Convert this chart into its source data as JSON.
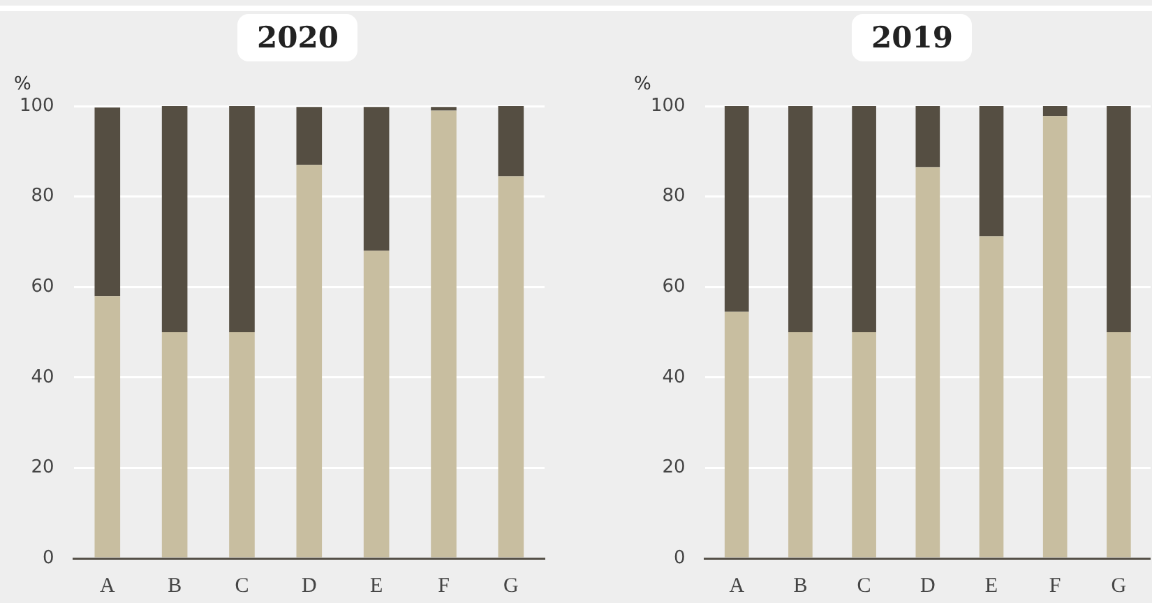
{
  "chart_data": [
    {
      "type": "bar",
      "title": "2020",
      "ylabel": "%",
      "categories": [
        "A",
        "B",
        "C",
        "D",
        "E",
        "F",
        "G"
      ],
      "stacked": true,
      "ylim": [
        0,
        100
      ],
      "yticks": [
        0,
        20,
        40,
        60,
        80,
        100
      ],
      "grid": "y",
      "legend": false,
      "series": [
        {
          "color": "#c8bea0",
          "values": [
            58,
            50,
            50,
            87,
            68,
            99,
            84.5
          ]
        },
        {
          "color": "#554e42",
          "values": [
            41.7,
            50,
            50,
            12.8,
            31.8,
            0.8,
            15.5
          ]
        }
      ]
    },
    {
      "type": "bar",
      "title": "2019",
      "ylabel": "%",
      "categories": [
        "A",
        "B",
        "C",
        "D",
        "E",
        "F",
        "G"
      ],
      "stacked": true,
      "ylim": [
        0,
        100
      ],
      "yticks": [
        0,
        20,
        40,
        60,
        80,
        100
      ],
      "grid": "y",
      "legend": false,
      "series": [
        {
          "color": "#c8bea0",
          "values": [
            54.5,
            50,
            50,
            86.5,
            71.2,
            97.8,
            50
          ]
        },
        {
          "color": "#554e42",
          "values": [
            45.5,
            50,
            50,
            13.5,
            28.8,
            2.2,
            50
          ]
        }
      ]
    }
  ]
}
